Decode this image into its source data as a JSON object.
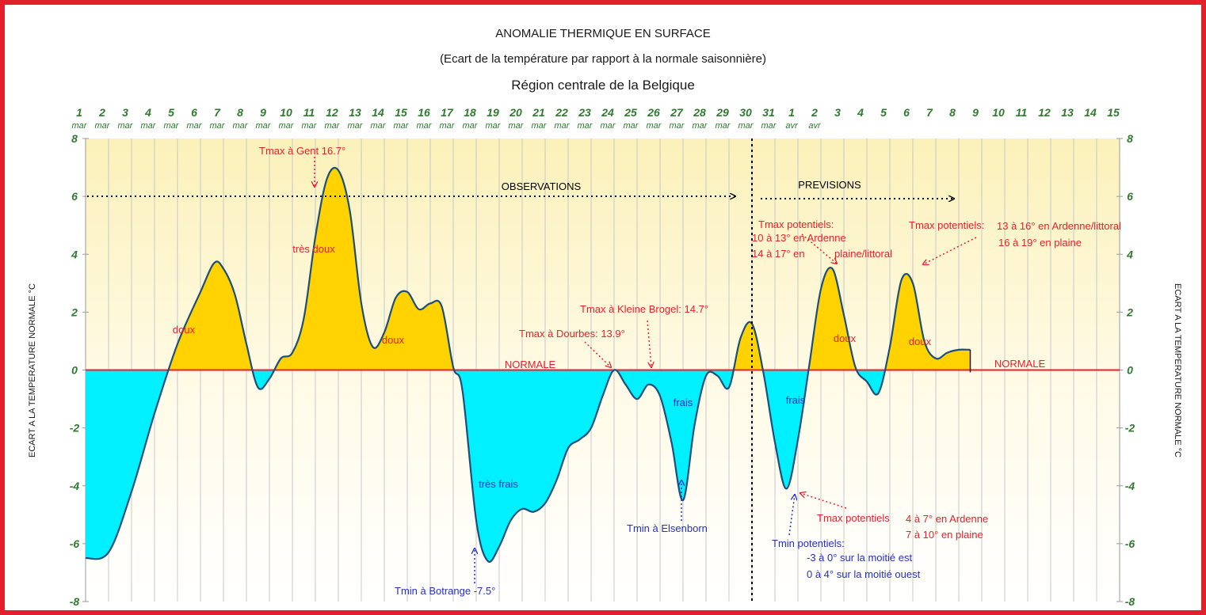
{
  "titles": {
    "line1": "ANOMALIE THERMIQUE EN SURFACE",
    "line2": "(Ecart de la température par rapport à la normale saisonnière)",
    "line3": "Région centrale de la Belgique"
  },
  "colors": {
    "frame": "#e1202c",
    "warm_fill": "#ffd200",
    "cold_fill": "#00f0ff",
    "curve": "#1d4f79",
    "normal_line": "#e8202e",
    "tick_green": "#2f7a2f",
    "annotation_red": "#e8202e",
    "annotation_blue": "#2430c8",
    "background_top": "#fbf1b9",
    "background_bottom": "#ffffff"
  },
  "chart_data": {
    "type": "area",
    "title": "ANOMALIE THERMIQUE EN SURFACE",
    "ylabel": "ECART A LA TEMPERATURE NORMALE °C",
    "ylim": [
      -8,
      8
    ],
    "yticks": [
      8,
      6,
      4,
      2,
      0,
      -2,
      -4,
      -6,
      -8
    ],
    "x_tick_days": [
      "1",
      "2",
      "3",
      "4",
      "5",
      "6",
      "7",
      "8",
      "9",
      "10",
      "11",
      "12",
      "13",
      "14",
      "15",
      "16",
      "17",
      "18",
      "19",
      "20",
      "21",
      "22",
      "23",
      "24",
      "25",
      "26",
      "27",
      "28",
      "29",
      "30",
      "31",
      "1",
      "2",
      "3",
      "4",
      "5",
      "6",
      "7",
      "8",
      "9",
      "10",
      "11",
      "12",
      "13",
      "14",
      "15"
    ],
    "x_tick_months": [
      "mar",
      "mar",
      "mar",
      "mar",
      "mar",
      "mar",
      "mar",
      "mar",
      "mar",
      "mar",
      "mar",
      "mar",
      "mar",
      "mar",
      "mar",
      "mar",
      "mar",
      "mar",
      "mar",
      "mar",
      "mar",
      "mar",
      "mar",
      "mar",
      "mar",
      "mar",
      "mar",
      "mar",
      "mar",
      "mar",
      "mar",
      "avr",
      "avr",
      "",
      "",
      "",
      "",
      "",
      "",
      "",
      "",
      "",
      "",
      "",
      "",
      ""
    ],
    "grid": true,
    "series": [
      {
        "name": "",
        "x": [
          0,
          1,
          2,
          3,
          4,
          5,
          5.6,
          6,
          6.5,
          7,
          7.5,
          8,
          8.5,
          9,
          9.5,
          10,
          10.5,
          11,
          11.5,
          12,
          12.5,
          13,
          13.5,
          14,
          14.5,
          15,
          15.5,
          16,
          16.4,
          17,
          17.5,
          18,
          18.5,
          19,
          19.5,
          20,
          20.5,
          21,
          21.5,
          22,
          22.5,
          23,
          23.5,
          24,
          24.5,
          25,
          25.5,
          26,
          26.5,
          27,
          27.5,
          28,
          28.5,
          29,
          29.5,
          30,
          30.5,
          31,
          31.5,
          32,
          32.5,
          33,
          33.5,
          34,
          34.5,
          35,
          35.5,
          36,
          36.5,
          37,
          37.5,
          38,
          38.5
        ],
        "values": [
          -6.5,
          -6.3,
          -4.2,
          -1.5,
          0.9,
          2.7,
          3.7,
          3.5,
          2.6,
          0.9,
          -0.6,
          -0.3,
          0.4,
          0.6,
          1.8,
          4.6,
          6.6,
          6.9,
          5.5,
          2.3,
          0.8,
          1.3,
          2.5,
          2.7,
          2.1,
          2.3,
          2.2,
          0.1,
          -0.7,
          -5.2,
          -6.6,
          -6.1,
          -5.2,
          -4.8,
          -4.9,
          -4.6,
          -3.8,
          -2.7,
          -2.4,
          -2.0,
          -0.9,
          0.0,
          -0.5,
          -1.0,
          -0.5,
          -0.9,
          -2.5,
          -4.5,
          -1.9,
          -0.2,
          -0.2,
          -0.6,
          1.1,
          1.6,
          -0.1,
          -2.5,
          -4.1,
          -2.4,
          0.2,
          2.8,
          3.5,
          1.9,
          0.1,
          -0.4,
          -0.8,
          0.8,
          3.1,
          3.0,
          1.0,
          0.4,
          0.6,
          0.7,
          0.7
        ]
      }
    ],
    "forecast_start_day": 29,
    "forecast_end_day": 38.5
  },
  "annotations": {
    "observations": "OBSERVATIONS",
    "previsions": "PREVISIONS",
    "normale_left": "NORMALE",
    "normale_right": "NORMALE",
    "doux1": "doux",
    "tres_doux": "très doux",
    "doux2": "doux",
    "doux3": "doux",
    "doux4": "doux",
    "tres_frais": "très frais",
    "frais1": "frais",
    "frais2": "frais",
    "tmax_gent": "Tmax à Gent 16.7°",
    "tmax_kleine": "Tmax à Kleine Brogel: 14.7°",
    "tmax_dourbes": "Tmax à Dourbes: 13.9°",
    "tmin_botrange": "Tmin à Botrange -7.5°",
    "tmin_elsenborn": "Tmin à Elsenborn",
    "tmax_pot1_l1": "Tmax potentiels:",
    "tmax_pot1_l2": "10 à 13° en Ardenne",
    "tmax_pot1_l3": "14 à 17° en",
    "tmax_pot1_l4": "plaine/littoral",
    "tmax_pot2_l1": "Tmax potentiels:",
    "tmax_pot2_l2": "13 à 16° en Ardenne/littoral",
    "tmax_pot2_l3": "16 à 19° en plaine",
    "tmax_pot3_l1": "Tmax potentiels",
    "tmax_pot3_l2": "4 à 7° en Ardenne",
    "tmax_pot3_l3": "7 à 10° en plaine",
    "tmin_pot_l1": "Tmin potentiels:",
    "tmin_pot_l2": "-3 à 0° sur la moitié est",
    "tmin_pot_l3": "0 à 4° sur la moitié ouest"
  }
}
